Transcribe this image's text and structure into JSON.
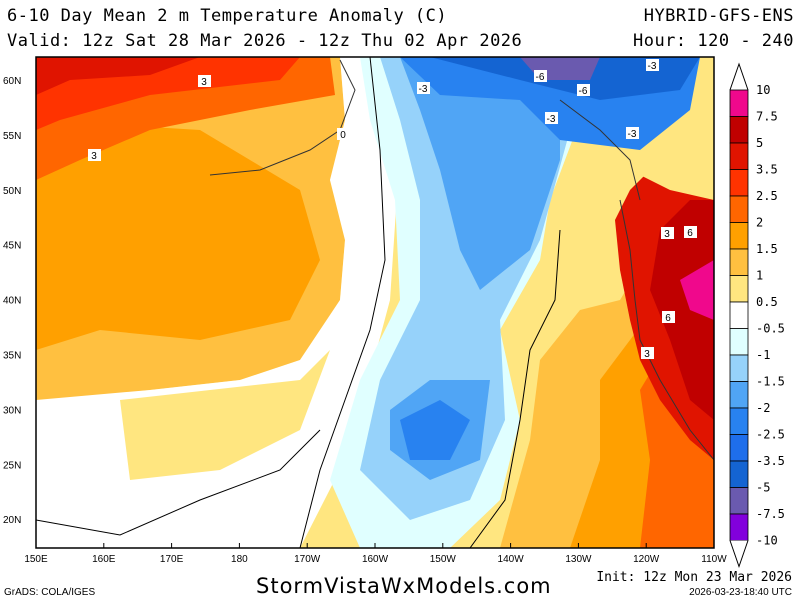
{
  "header": {
    "title": "6-10 Day Mean 2 m Temperature Anomaly (C)",
    "model": "HYBRID-GFS-ENS",
    "valid": "Valid: 12z Sat 28 Mar 2026 - 12z Thu 02 Apr 2026",
    "hour": "Hour: 120 - 240"
  },
  "map": {
    "lat_labels": [
      "60N",
      "55N",
      "50N",
      "45N",
      "40N",
      "35N",
      "30N",
      "25N",
      "20N"
    ],
    "lon_labels": [
      "150E",
      "160E",
      "170E",
      "180",
      "170W",
      "160W",
      "150W",
      "140W",
      "130W",
      "120W",
      "110W"
    ],
    "contour_labels": [
      "3",
      "3",
      "-3",
      "-3",
      "-6",
      "-6",
      "-3",
      "-3",
      "3",
      "6",
      "6",
      "3",
      "0"
    ]
  },
  "colorbar": {
    "labels": [
      "10",
      "7.5",
      "5",
      "3.5",
      "2.5",
      "2",
      "1.5",
      "1",
      "0.5",
      "-0.5",
      "-1",
      "-1.5",
      "-2",
      "-2.5",
      "-3.5",
      "-5",
      "-7.5",
      "-10"
    ],
    "colors": [
      "#f0088c",
      "#c00000",
      "#e01400",
      "#ff3300",
      "#ff6600",
      "#ffa000",
      "#ffc040",
      "#ffe680",
      "#ffffff",
      "#e0ffff",
      "#96d2fa",
      "#50a5f5",
      "#2882f0",
      "#1e6eeb",
      "#1464d2",
      "#6a5aaf",
      "#8200dc"
    ]
  },
  "footer": {
    "site": "StormVistaWxModels.com",
    "init": "Init: 12z Mon 23 Mar 2026",
    "stamp": "2026-03-23-18:40 UTC",
    "credit": "GrADS: COLA/IGES"
  }
}
